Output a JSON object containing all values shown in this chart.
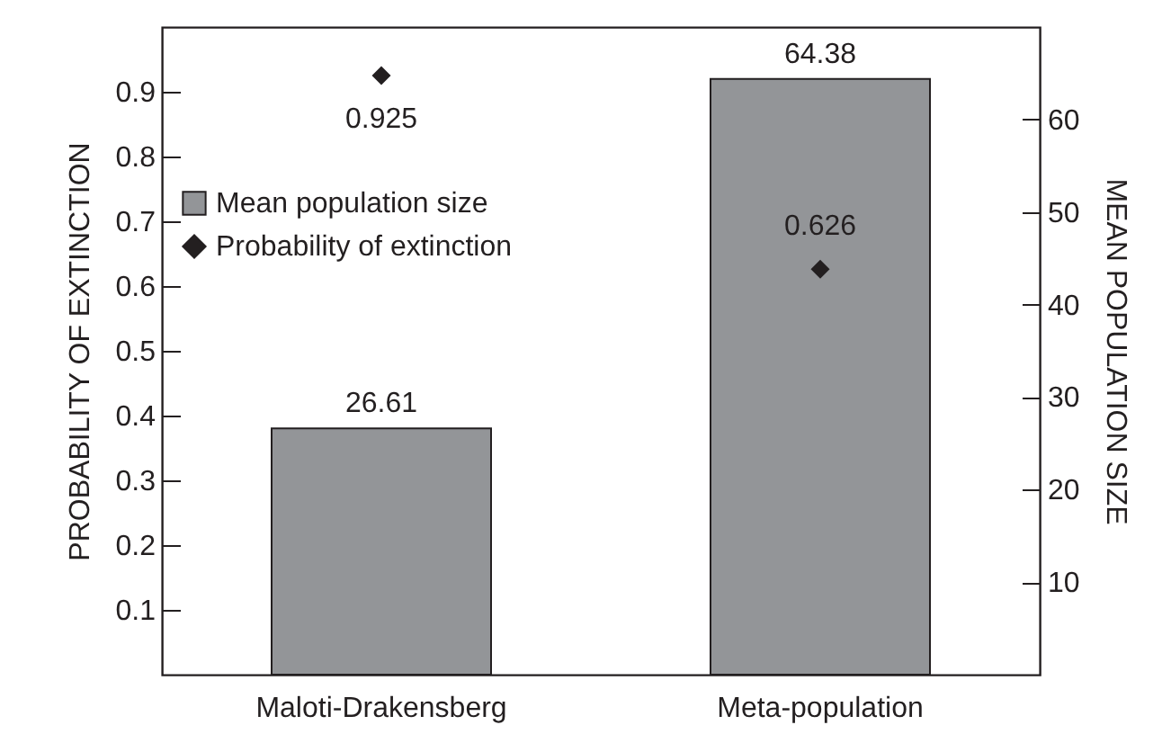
{
  "chart_data": {
    "type": "bar",
    "categories": [
      "Maloti-Drakensberg",
      "Meta-population"
    ],
    "ylabel": "PROBABILITY OF EXTINCTION",
    "y2label": "MEAN POPULATION SIZE",
    "ylim": [
      0,
      1
    ],
    "yticks": [
      0.1,
      0.2,
      0.3,
      0.4,
      0.5,
      0.6,
      0.7,
      0.8,
      0.9
    ],
    "y2lim": [
      0,
      70
    ],
    "y2ticks": [
      10,
      20,
      30,
      40,
      50,
      60
    ],
    "series": [
      {
        "name": "Mean population size",
        "axis": "y2",
        "color": "#939598",
        "values": [
          26.61,
          64.38
        ]
      },
      {
        "name": "Probability of extinction",
        "type": "scatter",
        "color": "#231f20",
        "values": [
          0.925,
          0.626
        ]
      }
    ],
    "marker": "diamond",
    "data_labels": true,
    "legend": "left"
  }
}
